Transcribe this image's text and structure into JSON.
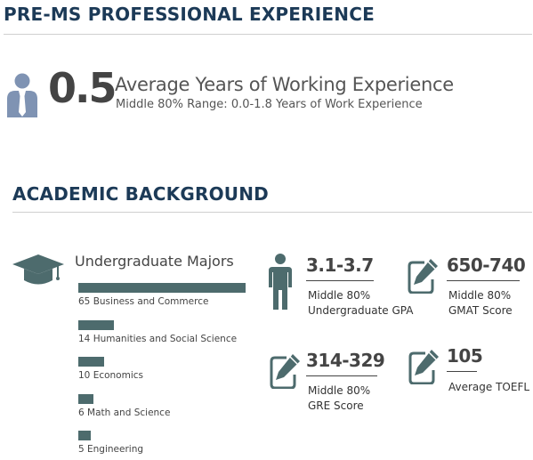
{
  "prems": {
    "title": "PRE-MS PROFESSIONAL EXPERIENCE",
    "avg_years": "0.5",
    "avg_label": "Average Years of Working Experience",
    "range_label": "Middle 80% Range: 0.0-1.8 Years of Work Experience"
  },
  "academic": {
    "title": "ACADEMIC BACKGROUND",
    "majors_title": "Undergraduate Majors",
    "majors": [
      {
        "label": "65 Business and Commerce",
        "value": 65
      },
      {
        "label": "14 Humanities and Social Science",
        "value": 14
      },
      {
        "label": "10 Economics",
        "value": 10
      },
      {
        "label": "6 Math and Science",
        "value": 6
      },
      {
        "label": "5 Engineering",
        "value": 5
      }
    ],
    "stats": [
      {
        "value": "3.1-3.7",
        "label_line1": "Middle 80%",
        "label_line2": "Undergraduate GPA",
        "icon": "person-icon"
      },
      {
        "value": "650-740",
        "label_line1": "Middle 80%",
        "label_line2": "GMAT Score",
        "icon": "pencil-note-icon"
      },
      {
        "value": "314-329",
        "label_line1": "Middle 80%",
        "label_line2": "GRE Score",
        "icon": "pencil-note-icon"
      },
      {
        "value": "105",
        "label_line1": "Average TOEFL",
        "label_line2": "",
        "icon": "pencil-note-icon"
      }
    ]
  },
  "colors": {
    "heading": "#1c3a57",
    "bar": "#4d6b6d",
    "icon_person_light": "#7f93b3",
    "icon_dark": "#4d6b6d"
  }
}
